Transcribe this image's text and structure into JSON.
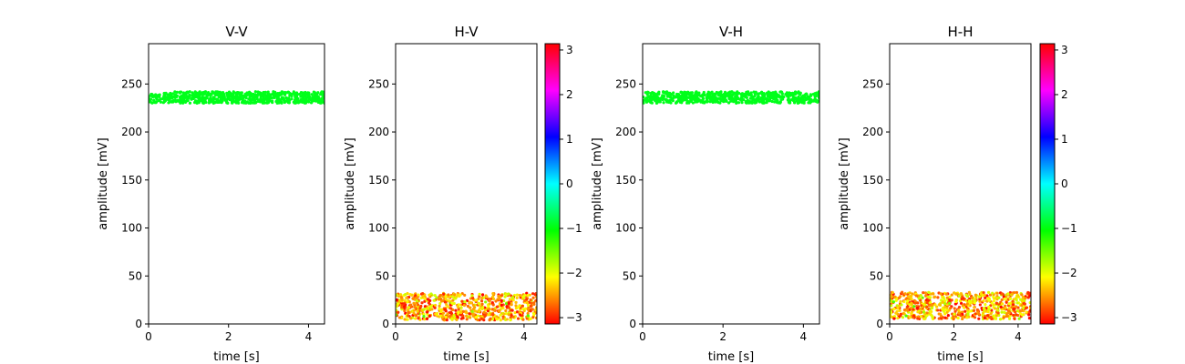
{
  "chart_data": [
    {
      "type": "scatter",
      "title": "V-V",
      "xlabel": "time [s]",
      "ylabel": "amplitude [mV]",
      "xlim": [
        0,
        4.4
      ],
      "ylim": [
        0,
        292
      ],
      "xticks": [
        0,
        2,
        4
      ],
      "yticks": [
        0,
        50,
        100,
        150,
        200,
        250
      ],
      "band": {
        "x": [
          0,
          4.4
        ],
        "y_center": 236,
        "y_spread": 6,
        "points": 700
      },
      "color": "#00ff1a",
      "colorbar": null
    },
    {
      "type": "scatter",
      "title": "H-V",
      "xlabel": "time [s]",
      "ylabel": "amplitude [mV]",
      "xlim": [
        0,
        4.4
      ],
      "ylim": [
        0,
        292
      ],
      "xticks": [
        0,
        2,
        4
      ],
      "yticks": [
        0,
        50,
        100,
        150,
        200,
        250
      ],
      "band": {
        "x": [
          0,
          4.4
        ],
        "y_center": 18,
        "y_spread": 14,
        "points": 700
      },
      "color_by_phase": true,
      "colorbar": {
        "ticks": [
          3,
          2,
          1,
          0,
          -1,
          -2,
          -3
        ],
        "tick_labels": [
          "3",
          "2",
          "1",
          "0",
          "−1",
          "−2",
          "−3"
        ],
        "range": [
          -3.14159,
          3.14159
        ],
        "colormap": "hsv"
      }
    },
    {
      "type": "scatter",
      "title": "V-H",
      "xlabel": "time [s]",
      "ylabel": "amplitude [mV]",
      "xlim": [
        0,
        4.4
      ],
      "ylim": [
        0,
        292
      ],
      "xticks": [
        0,
        2,
        4
      ],
      "yticks": [
        0,
        50,
        100,
        150,
        200,
        250
      ],
      "band": {
        "x": [
          0,
          4.4
        ],
        "y_center": 236,
        "y_spread": 6,
        "points": 700
      },
      "color": "#00ff1a",
      "colorbar": null
    },
    {
      "type": "scatter",
      "title": "H-H",
      "xlabel": "time [s]",
      "ylabel": "amplitude [mV]",
      "xlim": [
        0,
        4.4
      ],
      "ylim": [
        0,
        292
      ],
      "xticks": [
        0,
        2,
        4
      ],
      "yticks": [
        0,
        50,
        100,
        150,
        200,
        250
      ],
      "band": {
        "x": [
          0,
          4.4
        ],
        "y_center": 19,
        "y_spread": 14,
        "points": 700
      },
      "color_by_phase": true,
      "colorbar": {
        "ticks": [
          3,
          2,
          1,
          0,
          -1,
          -2,
          -3
        ],
        "tick_labels": [
          "3",
          "2",
          "1",
          "0",
          "−1",
          "−2",
          "−3"
        ],
        "range": [
          -3.14159,
          3.14159
        ],
        "colormap": "hsv"
      }
    }
  ]
}
